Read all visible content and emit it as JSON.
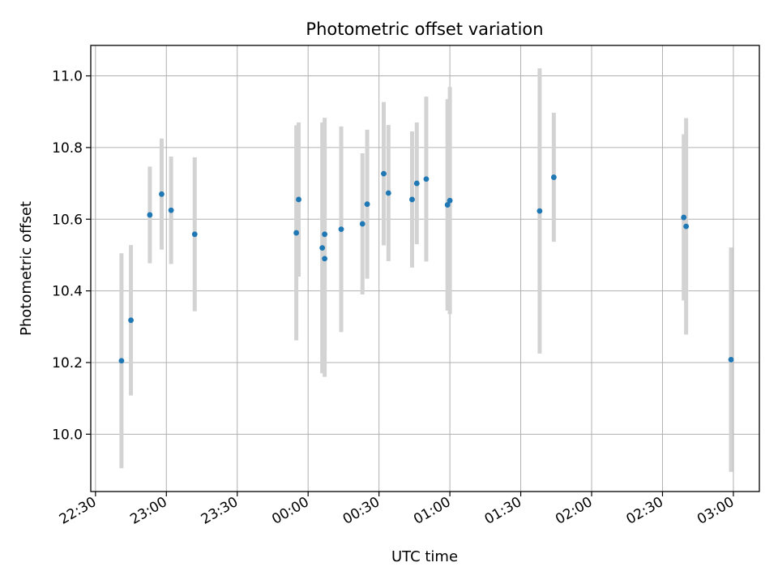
{
  "chart_data": {
    "type": "scatter",
    "title": "Photometric offset variation",
    "xlabel": "UTC time",
    "ylabel": "Photometric offset",
    "x_ticks": [
      "22:30",
      "23:00",
      "23:30",
      "00:00",
      "00:30",
      "01:00",
      "01:30",
      "02:00",
      "02:30",
      "03:00"
    ],
    "y_ticks": [
      "10.0",
      "10.2",
      "10.4",
      "10.6",
      "10.8",
      "11.0"
    ],
    "xlim": [
      "22:28",
      "03:11"
    ],
    "ylim": [
      9.84,
      11.085
    ],
    "grid": true,
    "colors": {
      "points": "#1f77b4",
      "errorbars": "#d3d3d3",
      "grid": "#b0b0b0"
    },
    "points": [
      {
        "x": "22:41",
        "y": 10.205,
        "err": 0.3
      },
      {
        "x": "22:45",
        "y": 10.318,
        "err": 0.21
      },
      {
        "x": "22:53",
        "y": 10.612,
        "err": 0.135
      },
      {
        "x": "22:58",
        "y": 10.67,
        "err": 0.155
      },
      {
        "x": "23:02",
        "y": 10.625,
        "err": 0.15
      },
      {
        "x": "23:12",
        "y": 10.558,
        "err": 0.215
      },
      {
        "x": "23:55",
        "y": 10.562,
        "err": 0.3
      },
      {
        "x": "23:56",
        "y": 10.655,
        "err": 0.215
      },
      {
        "x": "00:06",
        "y": 10.52,
        "err": 0.35
      },
      {
        "x": "00:07",
        "y": 10.49,
        "err": 0.33
      },
      {
        "x": "00:07",
        "y": 10.558,
        "err": 0.325
      },
      {
        "x": "00:14",
        "y": 10.572,
        "err": 0.287
      },
      {
        "x": "00:23",
        "y": 10.587,
        "err": 0.197
      },
      {
        "x": "00:25",
        "y": 10.642,
        "err": 0.208
      },
      {
        "x": "00:32",
        "y": 10.727,
        "err": 0.2
      },
      {
        "x": "00:34",
        "y": 10.673,
        "err": 0.19
      },
      {
        "x": "00:44",
        "y": 10.655,
        "err": 0.19
      },
      {
        "x": "00:46",
        "y": 10.7,
        "err": 0.17
      },
      {
        "x": "00:50",
        "y": 10.712,
        "err": 0.23
      },
      {
        "x": "00:59",
        "y": 10.64,
        "err": 0.295
      },
      {
        "x": "01:00",
        "y": 10.652,
        "err": 0.317
      },
      {
        "x": "01:38",
        "y": 10.623,
        "err": 0.398
      },
      {
        "x": "01:44",
        "y": 10.717,
        "err": 0.18
      },
      {
        "x": "02:39",
        "y": 10.605,
        "err": 0.232
      },
      {
        "x": "02:40",
        "y": 10.58,
        "err": 0.302
      },
      {
        "x": "02:59",
        "y": 10.208,
        "err": 0.313
      }
    ]
  }
}
